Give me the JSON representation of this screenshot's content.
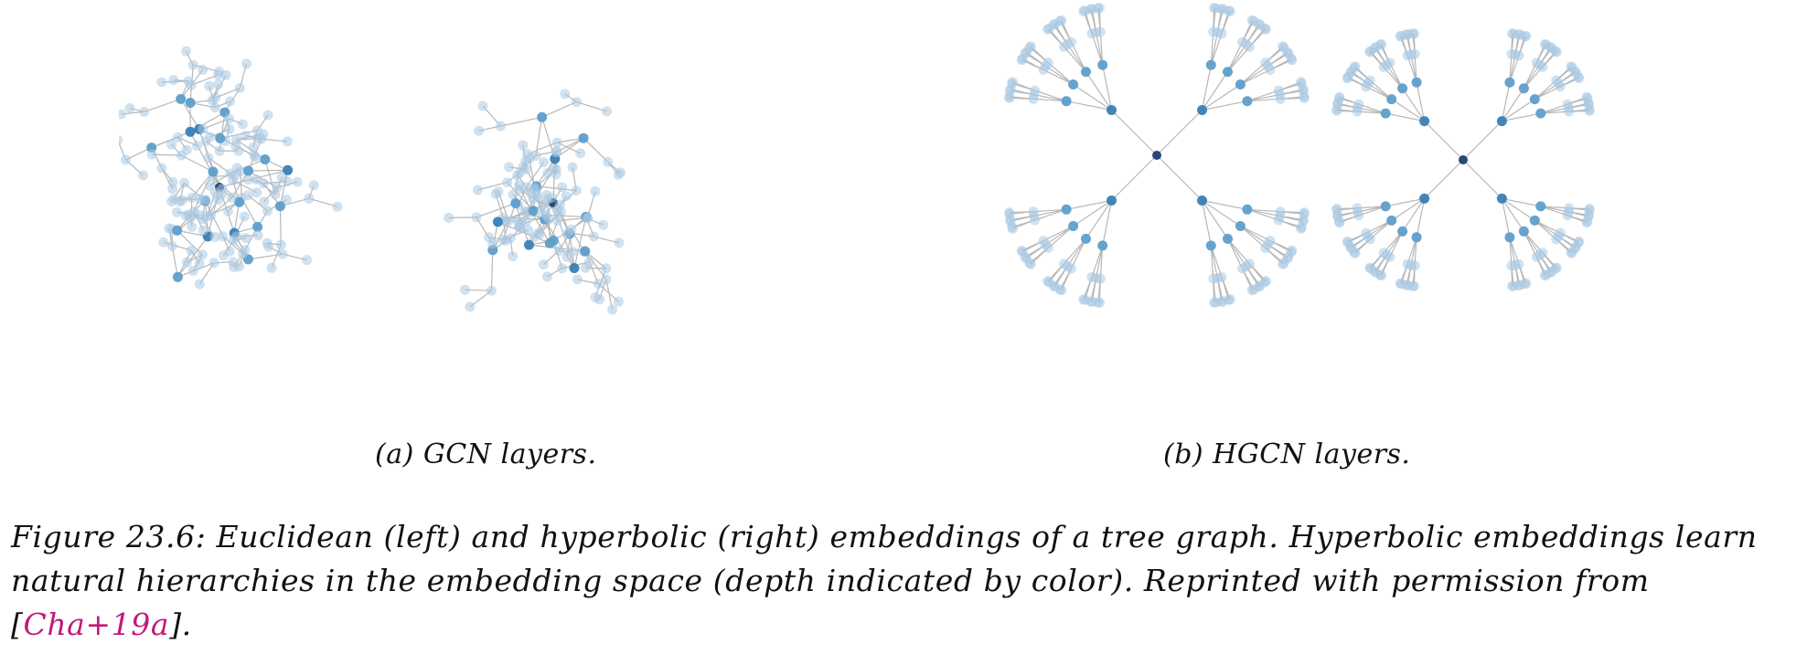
{
  "subfigures": [
    {
      "label": "(a) GCN layers.",
      "description": "Euclidean embeddings"
    },
    {
      "label": "(b) HGCN layers.",
      "description": "Hyperbolic embeddings"
    }
  ],
  "caption": {
    "figure_label": "Figure 23.6:",
    "text": "Euclidean (left) and hyperbolic (right) embeddings of a tree graph. Hyperbolic embeddings learn natural hierarchies in the embedding space (depth indicated by color). Reprinted with permission from ",
    "open_bracket": "[",
    "citation": "Cha+19a",
    "close_text": "]."
  },
  "colors": {
    "depth0": "#1d3f73",
    "depth1": "#3a7fb5",
    "depth2": "#5e9ecb",
    "depth3": "#a9c9e2",
    "edge": "#b8b8b8",
    "citation": "#c2187a"
  }
}
